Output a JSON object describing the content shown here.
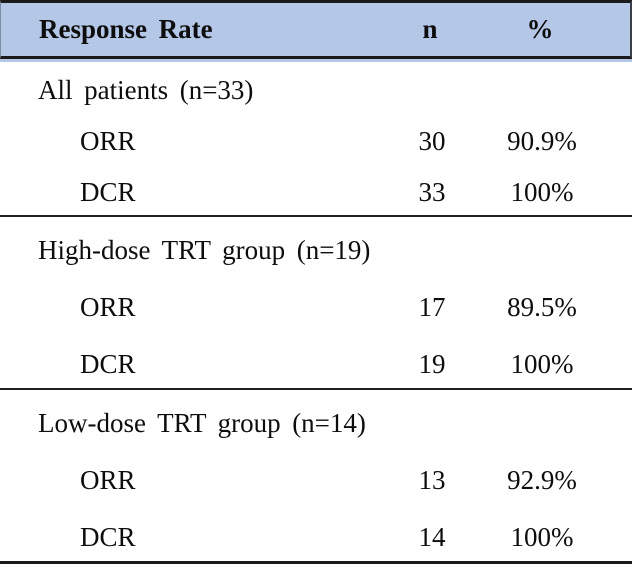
{
  "table": {
    "header": {
      "title": "Response Rate",
      "n_col": "n",
      "pct_col": "%"
    },
    "sections": [
      {
        "label": "All patients (n=33)",
        "rows": [
          {
            "measure": "ORR",
            "n": "30",
            "pct": "90.9%"
          },
          {
            "measure": "DCR",
            "n": "33",
            "pct": "100%"
          }
        ]
      },
      {
        "label": "High-dose TRT group (n=19)",
        "rows": [
          {
            "measure": "ORR",
            "n": "17",
            "pct": "89.5%"
          },
          {
            "measure": "DCR",
            "n": "19",
            "pct": "100%"
          }
        ]
      },
      {
        "label": "Low-dose TRT group (n=14)",
        "rows": [
          {
            "measure": "ORR",
            "n": "13",
            "pct": "92.9%"
          },
          {
            "measure": "DCR",
            "n": "14",
            "pct": "100%"
          }
        ]
      }
    ],
    "colors": {
      "header_bg": "#b4c7e7",
      "border": "#1a1a1a",
      "text": "#0d0d0d"
    }
  }
}
